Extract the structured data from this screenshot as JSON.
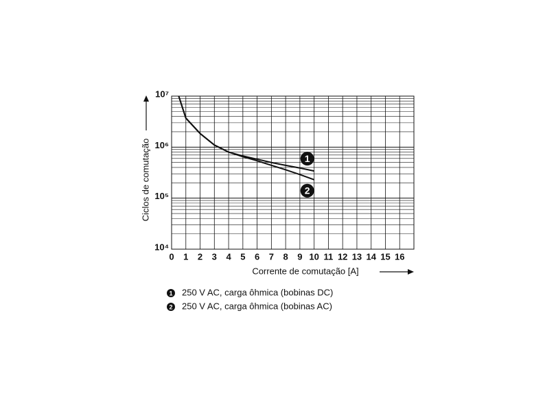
{
  "chart_data": {
    "type": "line",
    "x_label": "Corrente de comutação [A]",
    "y_label": "Ciclos de comutação",
    "x": [
      0.5,
      1,
      2,
      3,
      4,
      5,
      6,
      7,
      8,
      9,
      10
    ],
    "series": [
      {
        "name": "250 V AC, carga ôhmica (bobinas DC)",
        "label": "1",
        "color": "#111111",
        "values": [
          10000000,
          3700000,
          1850000,
          1100000,
          800000,
          670000,
          580000,
          500000,
          440000,
          390000,
          340000
        ]
      },
      {
        "name": "250 V AC, carga ôhmica (bobinas AC)",
        "label": "2",
        "color": "#111111",
        "values": [
          10000000,
          3700000,
          1850000,
          1100000,
          800000,
          650000,
          540000,
          440000,
          360000,
          290000,
          230000
        ]
      }
    ],
    "xlim": [
      0,
      17
    ],
    "xticks": [
      0,
      1,
      2,
      3,
      4,
      5,
      6,
      7,
      8,
      9,
      10,
      11,
      12,
      13,
      14,
      15,
      16
    ],
    "ylim": [
      10000,
      10000000
    ],
    "yticks": [
      {
        "value": 10000,
        "label": "10⁴"
      },
      {
        "value": 100000,
        "label": "10⁵"
      },
      {
        "value": 1000000,
        "label": "10⁶"
      },
      {
        "value": 10000000,
        "label": "10⁷"
      }
    ],
    "log_y": true,
    "grid": true
  }
}
